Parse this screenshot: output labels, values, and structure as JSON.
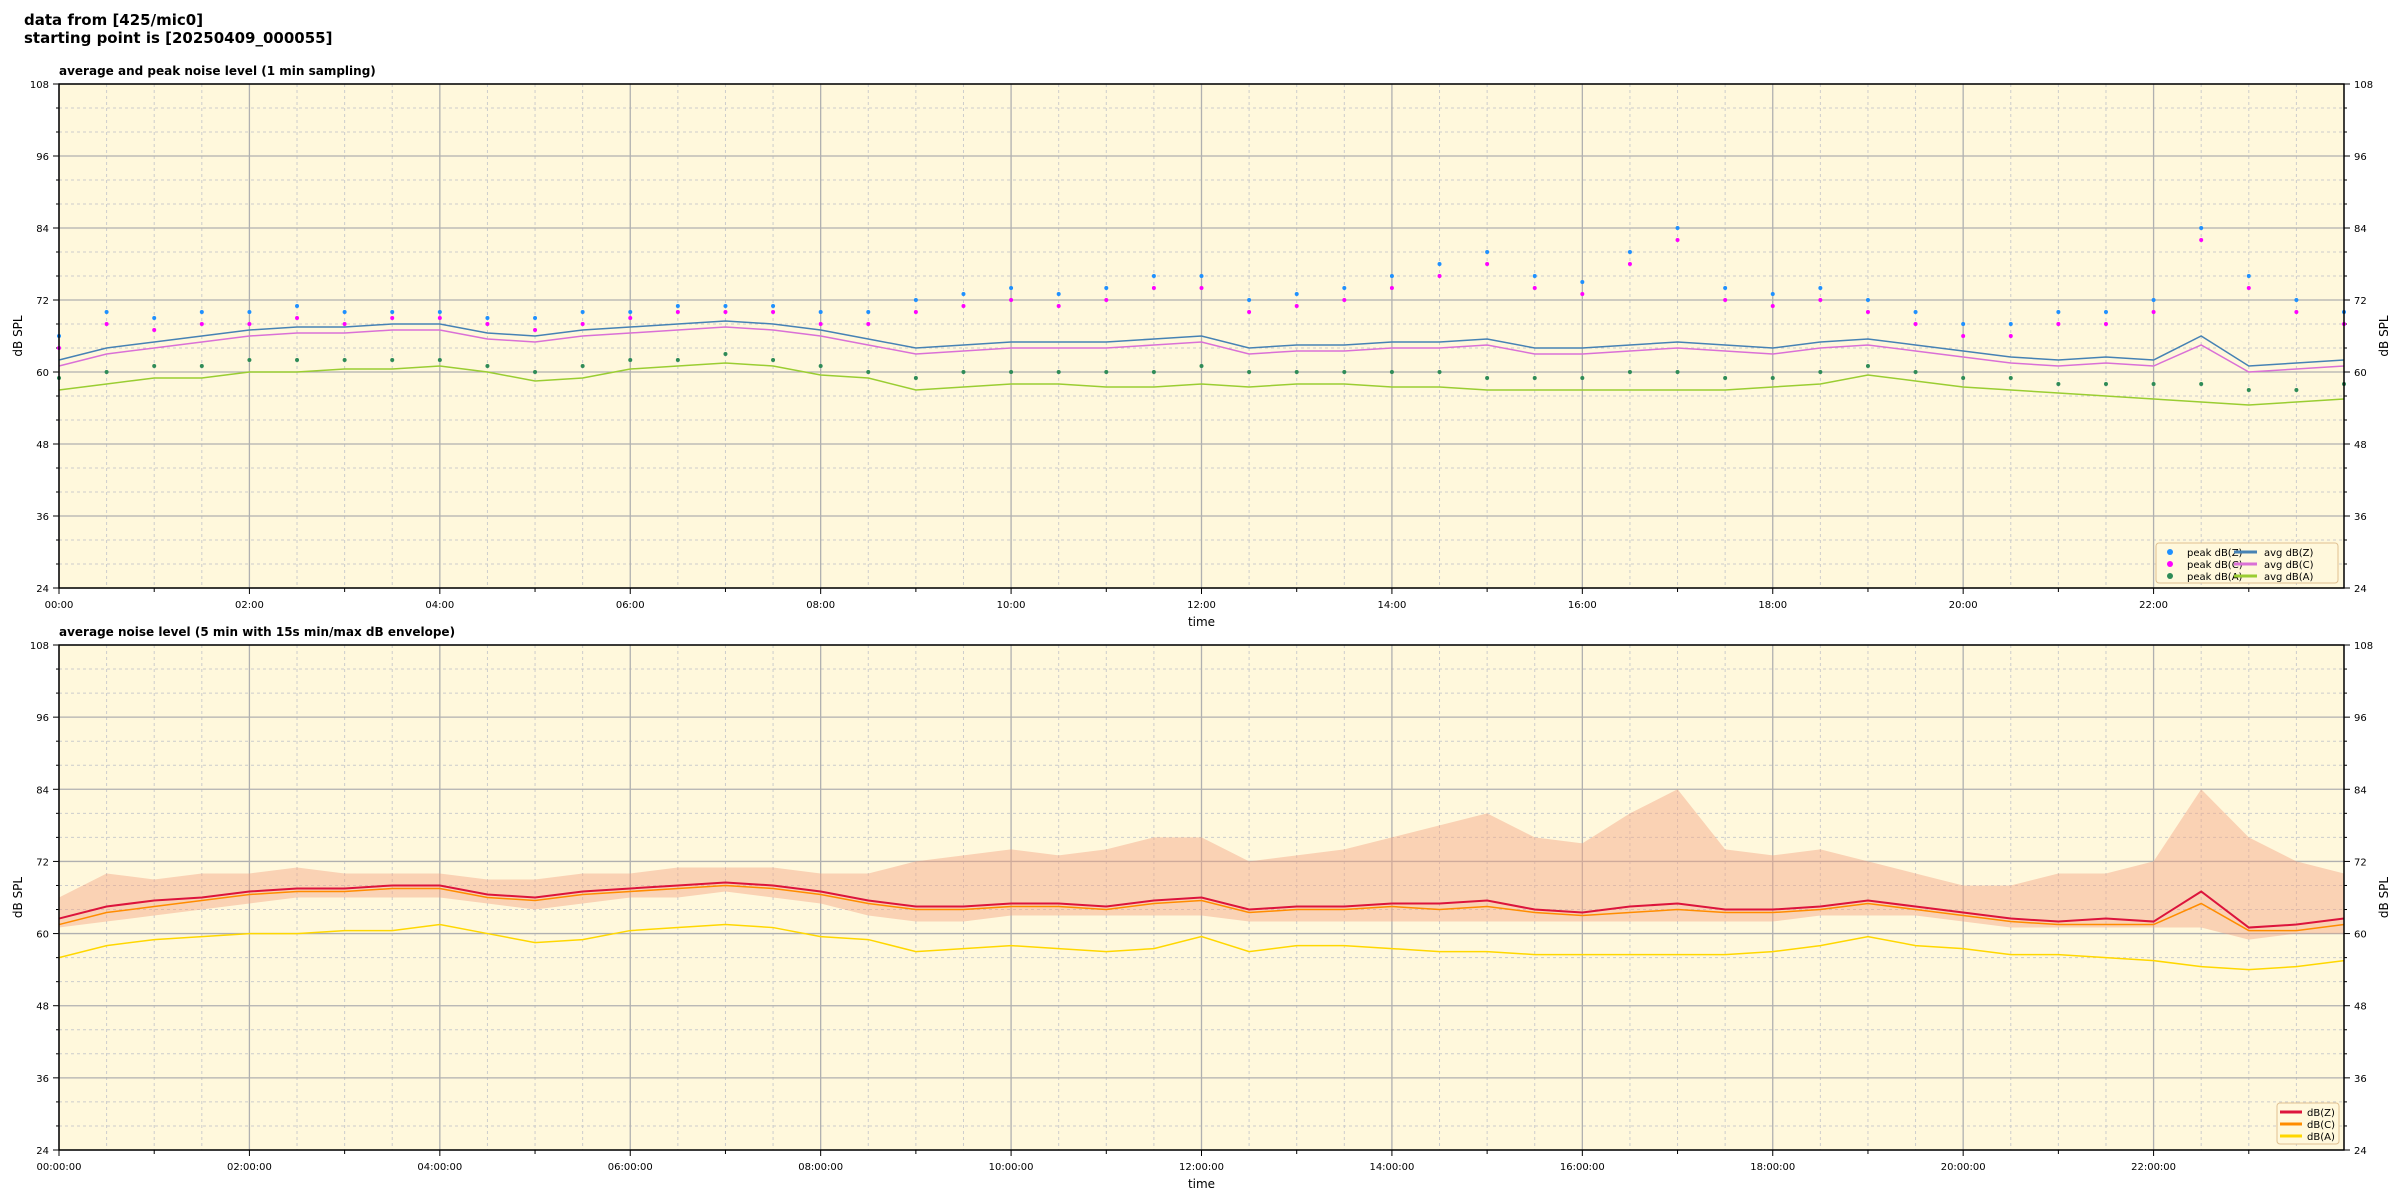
{
  "header": {
    "line1": "data from [425/mic0]",
    "line2": "starting point is [20250409_000055]"
  },
  "colors": {
    "plot_background": "#fff8dc",
    "peak_z": "#1e90ff",
    "peak_c": "#ff00ff",
    "peak_a": "#2e8b57",
    "avg_z": "#4682b4",
    "avg_c": "#da70d6",
    "avg_a": "#9acd32",
    "line_z": "#dc143c",
    "line_c": "#ff8c00",
    "line_a": "#ffd700",
    "envelope": "#f4a582"
  },
  "chart_data": [
    {
      "type": "line",
      "title": "average and peak noise level (1 min sampling)",
      "xlabel": "time",
      "ylabel": "dB SPL",
      "xlim": [
        0,
        24
      ],
      "ylim": [
        24,
        108
      ],
      "grid": true,
      "legend_placement": "lower-right",
      "xticks": [
        "00:00",
        "02:00",
        "04:00",
        "06:00",
        "08:00",
        "10:00",
        "12:00",
        "14:00",
        "16:00",
        "18:00",
        "20:00",
        "22:00"
      ],
      "yticks": [
        24,
        36,
        48,
        60,
        72,
        84,
        96,
        108
      ],
      "x_hours": [
        0,
        0.5,
        1,
        1.5,
        2,
        2.5,
        3,
        3.5,
        4,
        4.5,
        5,
        5.5,
        6,
        6.5,
        7,
        7.5,
        8,
        8.5,
        9,
        9.5,
        10,
        10.5,
        11,
        11.5,
        12,
        12.5,
        13,
        13.5,
        14,
        14.5,
        15,
        15.5,
        16,
        16.5,
        17,
        17.5,
        18,
        18.5,
        19,
        19.5,
        20,
        20.5,
        21,
        21.5,
        22,
        22.5,
        23,
        23.5,
        24
      ],
      "series": [
        {
          "name": "peak dB(Z)",
          "kind": "scatter",
          "values": [
            66,
            70,
            69,
            70,
            70,
            71,
            70,
            70,
            70,
            69,
            69,
            70,
            70,
            71,
            71,
            71,
            70,
            70,
            72,
            73,
            74,
            73,
            74,
            76,
            76,
            72,
            73,
            74,
            76,
            78,
            80,
            76,
            75,
            80,
            84,
            74,
            73,
            74,
            72,
            70,
            68,
            68,
            70,
            70,
            72,
            84,
            76,
            72,
            70
          ]
        },
        {
          "name": "peak dB(C)",
          "kind": "scatter",
          "values": [
            64,
            68,
            67,
            68,
            68,
            69,
            68,
            69,
            69,
            68,
            67,
            68,
            69,
            70,
            70,
            70,
            68,
            68,
            70,
            71,
            72,
            71,
            72,
            74,
            74,
            70,
            71,
            72,
            74,
            76,
            78,
            74,
            73,
            78,
            82,
            72,
            71,
            72,
            70,
            68,
            66,
            66,
            68,
            68,
            70,
            82,
            74,
            70,
            68
          ]
        },
        {
          "name": "peak dB(A)",
          "kind": "scatter",
          "values": [
            59,
            60,
            61,
            61,
            62,
            62,
            62,
            62,
            62,
            61,
            60,
            61,
            62,
            62,
            63,
            62,
            61,
            60,
            59,
            60,
            60,
            60,
            60,
            60,
            61,
            60,
            60,
            60,
            60,
            60,
            59,
            59,
            59,
            60,
            60,
            59,
            59,
            60,
            61,
            60,
            59,
            59,
            58,
            58,
            58,
            58,
            57,
            57,
            58
          ]
        },
        {
          "name": "avg dB(Z)",
          "kind": "line",
          "values": [
            62,
            64,
            65,
            66,
            67,
            67.5,
            67.5,
            68,
            68,
            66.5,
            66,
            67,
            67.5,
            68,
            68.5,
            68,
            67,
            65.5,
            64,
            64.5,
            65,
            65,
            65,
            65.5,
            66,
            64,
            64.5,
            64.5,
            65,
            65,
            65.5,
            64,
            64,
            64.5,
            65,
            64.5,
            64,
            65,
            65.5,
            64.5,
            63.5,
            62.5,
            62,
            62.5,
            62,
            66,
            61,
            61.5,
            62
          ]
        },
        {
          "name": "avg dB(C)",
          "kind": "line",
          "values": [
            61,
            63,
            64,
            65,
            66,
            66.5,
            66.5,
            67,
            67,
            65.5,
            65,
            66,
            66.5,
            67,
            67.5,
            67,
            66,
            64.5,
            63,
            63.5,
            64,
            64,
            64,
            64.5,
            65,
            63,
            63.5,
            63.5,
            64,
            64,
            64.5,
            63,
            63,
            63.5,
            64,
            63.5,
            63,
            64,
            64.5,
            63.5,
            62.5,
            61.5,
            61,
            61.5,
            61,
            64.5,
            60,
            60.5,
            61
          ]
        },
        {
          "name": "avg dB(A)",
          "kind": "line",
          "values": [
            57,
            58,
            59,
            59,
            60,
            60,
            60.5,
            60.5,
            61,
            60,
            58.5,
            59,
            60.5,
            61,
            61.5,
            61,
            59.5,
            59,
            57,
            57.5,
            58,
            58,
            57.5,
            57.5,
            58,
            57.5,
            58,
            58,
            57.5,
            57.5,
            57,
            57,
            57,
            57,
            57,
            57,
            57.5,
            58,
            59.5,
            58.5,
            57.5,
            57,
            56.5,
            56,
            55.5,
            55,
            54.5,
            55,
            55.5
          ]
        }
      ]
    },
    {
      "type": "line",
      "title": "average noise level (5 min with 15s min/max dB envelope)",
      "xlabel": "time",
      "ylabel": "dB SPL",
      "xlim": [
        0,
        24
      ],
      "ylim": [
        24,
        108
      ],
      "grid": true,
      "legend_placement": "lower-right",
      "xticks": [
        "00:00:00",
        "02:00:00",
        "04:00:00",
        "06:00:00",
        "08:00:00",
        "10:00:00",
        "12:00:00",
        "14:00:00",
        "16:00:00",
        "18:00:00",
        "20:00:00",
        "22:00:00"
      ],
      "yticks": [
        24,
        36,
        48,
        60,
        72,
        84,
        96,
        108
      ],
      "x_hours": [
        0,
        0.5,
        1,
        1.5,
        2,
        2.5,
        3,
        3.5,
        4,
        4.5,
        5,
        5.5,
        6,
        6.5,
        7,
        7.5,
        8,
        8.5,
        9,
        9.5,
        10,
        10.5,
        11,
        11.5,
        12,
        12.5,
        13,
        13.5,
        14,
        14.5,
        15,
        15.5,
        16,
        16.5,
        17,
        17.5,
        18,
        18.5,
        19,
        19.5,
        20,
        20.5,
        21,
        21.5,
        22,
        22.5,
        23,
        23.5,
        24
      ],
      "envelope": {
        "min": [
          61,
          62,
          63,
          64,
          65,
          66,
          66,
          66,
          66,
          65,
          64,
          65,
          66,
          66,
          67,
          66,
          65,
          63,
          62,
          62,
          63,
          63,
          63,
          63,
          63,
          62,
          62,
          62,
          62,
          62,
          62,
          62,
          62,
          62,
          62,
          62,
          62,
          63,
          63,
          63,
          62,
          61,
          61,
          61,
          61,
          61,
          59,
          60,
          60
        ],
        "max": [
          66,
          70,
          69,
          70,
          70,
          71,
          70,
          70,
          70,
          69,
          69,
          70,
          70,
          71,
          71,
          71,
          70,
          70,
          72,
          73,
          74,
          73,
          74,
          76,
          76,
          72,
          73,
          74,
          76,
          78,
          80,
          76,
          75,
          80,
          84,
          74,
          73,
          74,
          72,
          70,
          68,
          68,
          70,
          70,
          72,
          84,
          76,
          72,
          70
        ]
      },
      "series": [
        {
          "name": "dB(Z)",
          "values": [
            62.5,
            64.5,
            65.5,
            66,
            67,
            67.5,
            67.5,
            68,
            68,
            66.5,
            66,
            67,
            67.5,
            68,
            68.5,
            68,
            67,
            65.5,
            64.5,
            64.5,
            65,
            65,
            64.5,
            65.5,
            66,
            64,
            64.5,
            64.5,
            65,
            65,
            65.5,
            64,
            63.5,
            64.5,
            65,
            64,
            64,
            64.5,
            65.5,
            64.5,
            63.5,
            62.5,
            62,
            62.5,
            62,
            67,
            61,
            61.5,
            62.5
          ]
        },
        {
          "name": "dB(C)",
          "values": [
            61.5,
            63.5,
            64.5,
            65.5,
            66.5,
            67,
            67,
            67.5,
            67.5,
            66,
            65.5,
            66.5,
            67,
            67.5,
            68,
            67.5,
            66.5,
            65,
            64,
            64,
            64.5,
            64.5,
            64,
            65,
            65.5,
            63.5,
            64,
            64,
            64.5,
            64,
            64.5,
            63.5,
            63,
            63.5,
            64,
            63.5,
            63.5,
            64,
            65,
            64,
            63,
            62,
            61.5,
            61.5,
            61.5,
            65,
            60.5,
            60.5,
            61.5
          ]
        },
        {
          "name": "dB(A)",
          "values": [
            56,
            58,
            59,
            59.5,
            60,
            60,
            60.5,
            60.5,
            61.5,
            60,
            58.5,
            59,
            60.5,
            61,
            61.5,
            61,
            59.5,
            59,
            57,
            57.5,
            58,
            57.5,
            57,
            57.5,
            59.5,
            57,
            58,
            58,
            57.5,
            57,
            57,
            56.5,
            56.5,
            56.5,
            56.5,
            56.5,
            57,
            58,
            59.5,
            58,
            57.5,
            56.5,
            56.5,
            56,
            55.5,
            54.5,
            54,
            54.5,
            55.5
          ]
        }
      ]
    }
  ]
}
